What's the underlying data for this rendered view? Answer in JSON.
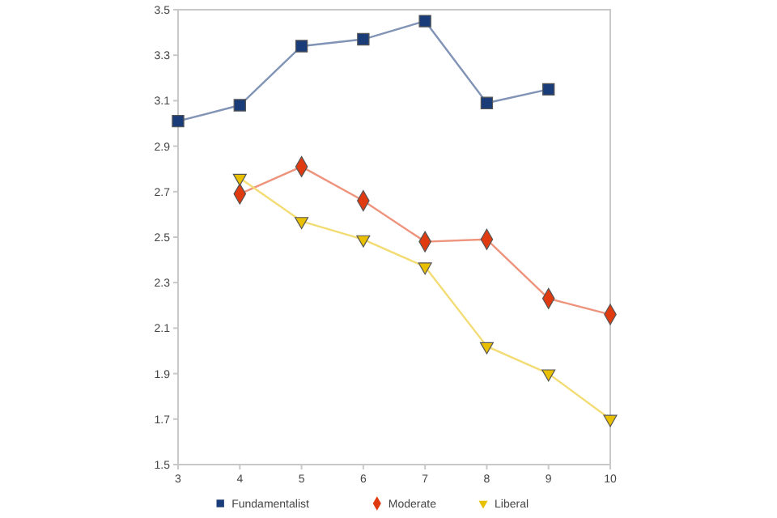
{
  "chart_data": {
    "type": "line",
    "x": [
      3,
      4,
      5,
      6,
      7,
      8,
      9,
      10
    ],
    "xlim": [
      3,
      10
    ],
    "xticks": [
      3,
      4,
      5,
      6,
      7,
      8,
      9,
      10
    ],
    "ylim": [
      1.5,
      3.5
    ],
    "yticks": [
      1.5,
      1.7,
      1.9,
      2.1,
      2.3,
      2.5,
      2.7,
      2.9,
      3.1,
      3.3,
      3.5
    ],
    "grid": false,
    "legend": "bottom",
    "line_style": "solid",
    "series": [
      {
        "name": "Fundamentalist",
        "color": "#1a3d7a",
        "marker": "square",
        "values": [
          3.01,
          3.08,
          3.34,
          3.37,
          3.45,
          3.09,
          3.15,
          null
        ]
      },
      {
        "name": "Moderate",
        "color": "#e03a10",
        "marker": "diamond",
        "values": [
          null,
          2.69,
          2.81,
          2.66,
          2.48,
          2.49,
          2.23,
          2.16
        ]
      },
      {
        "name": "Liberal",
        "color": "#e8c000",
        "marker": "triangle",
        "values": [
          null,
          2.76,
          2.57,
          2.49,
          2.37,
          2.02,
          1.9,
          1.7
        ]
      }
    ]
  }
}
